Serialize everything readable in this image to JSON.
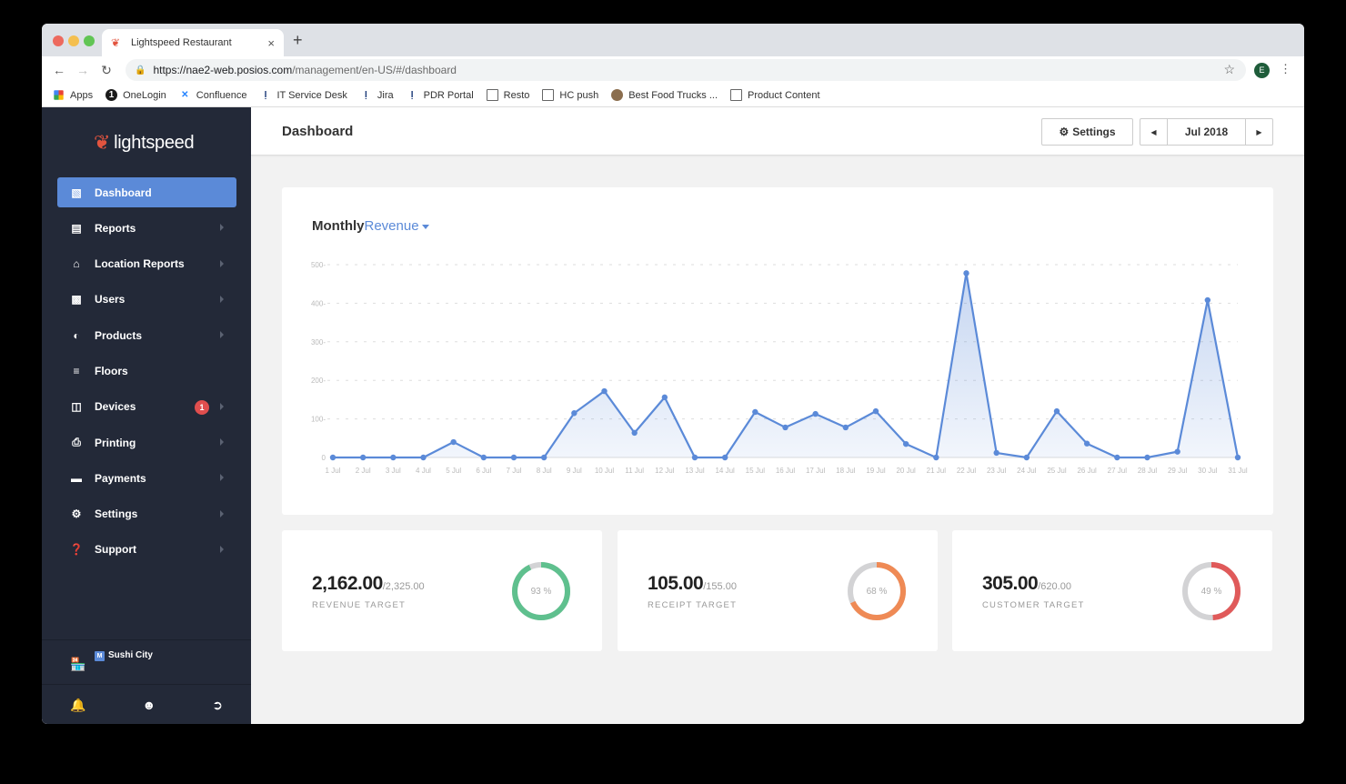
{
  "browser": {
    "tab_title": "Lightspeed Restaurant",
    "new_tab": "+",
    "tab_close": "×",
    "url_host": "https://nae2-web.posios.com",
    "url_path": "/management/en-US/#/dashboard",
    "profile_initial": "E",
    "bookmarks": [
      {
        "label": "Apps",
        "icon": "apps-grid-icon"
      },
      {
        "label": "OneLogin",
        "icon": "onelogin-icon"
      },
      {
        "label": "Confluence",
        "icon": "confluence-icon"
      },
      {
        "label": "IT Service Desk",
        "icon": "jira-service-icon"
      },
      {
        "label": "Jira",
        "icon": "jira-icon"
      },
      {
        "label": "PDR Portal",
        "icon": "jira-icon"
      },
      {
        "label": "Resto",
        "icon": "folder-icon"
      },
      {
        "label": "HC push",
        "icon": "document-icon"
      },
      {
        "label": "Best Food Trucks ...",
        "icon": "food-truck-icon"
      },
      {
        "label": "Product Content",
        "icon": "folder-icon"
      }
    ]
  },
  "sidebar": {
    "logo": "lightspeed",
    "items": [
      {
        "label": "Dashboard",
        "icon": "bar-chart-icon",
        "active": true
      },
      {
        "label": "Reports",
        "icon": "clipboard-icon"
      },
      {
        "label": "Location Reports",
        "icon": "buildings-icon"
      },
      {
        "label": "Users",
        "icon": "id-card-icon"
      },
      {
        "label": "Products",
        "icon": "dish-icon"
      },
      {
        "label": "Floors",
        "icon": "layers-icon"
      },
      {
        "label": "Devices",
        "icon": "devices-icon",
        "badge": "1"
      },
      {
        "label": "Printing",
        "icon": "printer-icon"
      },
      {
        "label": "Payments",
        "icon": "credit-card-icon"
      },
      {
        "label": "Settings",
        "icon": "gear-icon"
      },
      {
        "label": "Support",
        "icon": "question-icon"
      }
    ],
    "store": {
      "badge": "M",
      "name": "Sushi City"
    }
  },
  "header": {
    "title": "Dashboard",
    "settings_label": "Settings",
    "month": "Jul 2018"
  },
  "chart_card": {
    "title_prefix": "Monthly",
    "title_metric": "Revenue"
  },
  "kpis": [
    {
      "value": "2,162.00",
      "target": "/2,325.00",
      "label": "REVENUE TARGET",
      "percent": 93,
      "percent_label": "93 %",
      "color": "#5fc08e"
    },
    {
      "value": "105.00",
      "target": "/155.00",
      "label": "RECEIPT TARGET",
      "percent": 68,
      "percent_label": "68 %",
      "color": "#ef8a55"
    },
    {
      "value": "305.00",
      "target": "/620.00",
      "label": "CUSTOMER TARGET",
      "percent": 49,
      "percent_label": "49 %",
      "color": "#e05a5a"
    }
  ],
  "colors": {
    "accent": "#5b8ad8",
    "sidebar_bg": "#232938",
    "badge": "#e04e4e",
    "track": "#d3d3d5"
  },
  "chart_data": {
    "type": "area",
    "title": "Monthly Revenue",
    "xlabel": "",
    "ylabel": "",
    "ylim": [
      0,
      500
    ],
    "yticks": [
      0,
      100,
      200,
      300,
      400,
      500
    ],
    "grid": true,
    "categories": [
      "1 Jul",
      "2 Jul",
      "3 Jul",
      "4 Jul",
      "5 Jul",
      "6 Jul",
      "7 Jul",
      "8 Jul",
      "9 Jul",
      "10 Jul",
      "11 Jul",
      "12 Jul",
      "13 Jul",
      "14 Jul",
      "15 Jul",
      "16 Jul",
      "17 Jul",
      "18 Jul",
      "19 Jul",
      "20 Jul",
      "21 Jul",
      "22 Jul",
      "23 Jul",
      "24 Jul",
      "25 Jul",
      "26 Jul",
      "27 Jul",
      "28 Jul",
      "29 Jul",
      "30 Jul",
      "31 Jul"
    ],
    "series": [
      {
        "name": "Revenue",
        "values": [
          0,
          0,
          0,
          0,
          40,
          0,
          0,
          0,
          115,
          172,
          64,
          156,
          0,
          0,
          118,
          78,
          113,
          78,
          120,
          35,
          0,
          478,
          12,
          0,
          120,
          36,
          0,
          0,
          15,
          408,
          0
        ]
      }
    ]
  }
}
